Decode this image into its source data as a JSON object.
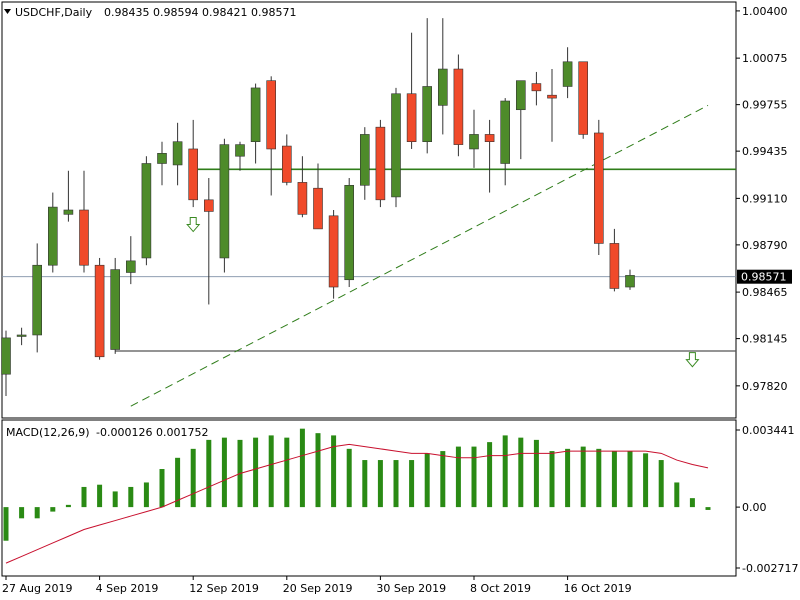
{
  "chart_data": [
    {
      "type": "candlestick",
      "header": {
        "symbol_label": "USDCHF,Daily",
        "ohlc_values": "0.98435 0.98594 0.98421 0.98571"
      },
      "current_price": 0.98571,
      "current_price_label": "0.98571",
      "ylim": [
        0.9764,
        1.0042
      ],
      "y_ticks": [
        "1.00400",
        "1.00075",
        "0.99755",
        "0.99435",
        "0.99110",
        "0.98790",
        "0.98465",
        "0.98145",
        "0.97820"
      ],
      "x_tick_labels": [
        "27 Aug 2019",
        "4 Sep 2019",
        "12 Sep 2019",
        "20 Sep 2019",
        "30 Sep 2019",
        "8 Oct 2019",
        "16 Oct 2019"
      ],
      "x_tick_candle_index": [
        0,
        6,
        12,
        18,
        24,
        30,
        36
      ],
      "colors": {
        "bull": "#4e8b2a",
        "bear": "#f04a2a",
        "wick": "#333333",
        "trend": "#2f7d1a"
      },
      "candles": [
        [
          0.979,
          0.982,
          0.9775,
          0.9815
        ],
        [
          0.9816,
          0.9822,
          0.981,
          0.9817
        ],
        [
          0.9817,
          0.988,
          0.9805,
          0.9865
        ],
        [
          0.9865,
          0.9915,
          0.986,
          0.9905
        ],
        [
          0.99,
          0.993,
          0.9895,
          0.9903
        ],
        [
          0.9903,
          0.993,
          0.986,
          0.9865
        ],
        [
          0.9865,
          0.987,
          0.98,
          0.9802
        ],
        [
          0.9807,
          0.987,
          0.9804,
          0.9862
        ],
        [
          0.986,
          0.9885,
          0.9852,
          0.9868
        ],
        [
          0.987,
          0.994,
          0.9865,
          0.9935
        ],
        [
          0.9935,
          0.995,
          0.992,
          0.9942
        ],
        [
          0.9934,
          0.9963,
          0.992,
          0.995
        ],
        [
          0.9945,
          0.9965,
          0.9905,
          0.991
        ],
        [
          0.991,
          0.9925,
          0.9838,
          0.9902
        ],
        [
          0.987,
          0.9952,
          0.986,
          0.9948
        ],
        [
          0.994,
          0.995,
          0.993,
          0.9948
        ],
        [
          0.995,
          0.999,
          0.9935,
          0.9987
        ],
        [
          0.9992,
          0.9995,
          0.9913,
          0.9945
        ],
        [
          0.9947,
          0.9955,
          0.992,
          0.9922
        ],
        [
          0.9922,
          0.994,
          0.9898,
          0.99
        ],
        [
          0.9918,
          0.9935,
          0.989,
          0.989
        ],
        [
          0.9899,
          0.9903,
          0.9842,
          0.985
        ],
        [
          0.9855,
          0.9925,
          0.985,
          0.992
        ],
        [
          0.992,
          0.996,
          0.991,
          0.9955
        ],
        [
          0.996,
          0.9965,
          0.9905,
          0.991
        ],
        [
          0.9912,
          0.9987,
          0.9905,
          0.9983
        ],
        [
          0.9983,
          1.0025,
          0.9945,
          0.995
        ],
        [
          0.995,
          1.0035,
          0.9942,
          0.9988
        ],
        [
          0.9975,
          1.0035,
          0.9955,
          1.0
        ],
        [
          1.0,
          1.001,
          0.994,
          0.9948
        ],
        [
          0.9945,
          0.9972,
          0.9932,
          0.9955
        ],
        [
          0.9955,
          0.9965,
          0.9915,
          0.995
        ],
        [
          0.9935,
          0.998,
          0.992,
          0.9978
        ],
        [
          0.9972,
          0.999,
          0.9938,
          0.9992
        ],
        [
          0.999,
          0.9998,
          0.9975,
          0.9985
        ],
        [
          0.9982,
          1.0,
          0.995,
          0.998
        ],
        [
          0.9988,
          1.0015,
          0.998,
          1.0005
        ],
        [
          1.0005,
          1.0005,
          0.9952,
          0.9955
        ],
        [
          0.9956,
          0.9965,
          0.9872,
          0.988
        ],
        [
          0.988,
          0.989,
          0.9847,
          0.9849
        ],
        [
          0.985,
          0.9862,
          0.9848,
          0.9858
        ]
      ],
      "horizontal_levels": [
        0.9931,
        0.9806
      ],
      "trendline": {
        "from": [
          8,
          0.9768
        ],
        "to": [
          45,
          0.9975
        ]
      },
      "down_arrows": [
        [
          12,
          0.9893
        ],
        [
          44,
          0.98
        ]
      ]
    },
    {
      "type": "bar+line",
      "header": {
        "indicator_label": "MACD(12,26,9)",
        "indicator_values": "-0.000126 0.001752"
      },
      "ylim": [
        -0.002717,
        0.003441
      ],
      "y_ticks": [
        "0.003441",
        "0.00",
        "-0.002717"
      ],
      "colors": {
        "histogram": "#2a8a14",
        "signal": "#c8102e"
      },
      "histogram": [
        -0.0015,
        -0.0005,
        -0.0005,
        -0.0002,
        0.0001,
        0.0009,
        0.001,
        0.0007,
        0.0009,
        0.0011,
        0.0017,
        0.0022,
        0.0026,
        0.003,
        0.0031,
        0.003,
        0.0031,
        0.0032,
        0.0031,
        0.0035,
        0.0033,
        0.0032,
        0.0026,
        0.0021,
        0.0021,
        0.0021,
        0.0021,
        0.0024,
        0.0025,
        0.0027,
        0.0027,
        0.0029,
        0.0032,
        0.0031,
        0.003,
        0.0025,
        0.0026,
        0.0027,
        0.0026,
        0.0025,
        0.0025,
        0.0024,
        0.0021,
        0.0011,
        0.0004,
        -0.000126
      ],
      "signal": [
        -0.0025,
        -0.0022,
        -0.0019,
        -0.0016,
        -0.0013,
        -0.001,
        -0.0008,
        -0.0006,
        -0.0004,
        -0.0002,
        0.0,
        0.0003,
        0.0006,
        0.0009,
        0.0012,
        0.0015,
        0.0017,
        0.0019,
        0.0021,
        0.0023,
        0.0025,
        0.0027,
        0.0028,
        0.0027,
        0.0026,
        0.0025,
        0.0024,
        0.0024,
        0.0023,
        0.0022,
        0.0022,
        0.0023,
        0.0023,
        0.0024,
        0.0024,
        0.0024,
        0.0025,
        0.0025,
        0.0025,
        0.0025,
        0.0025,
        0.0025,
        0.0024,
        0.0021,
        0.0019,
        0.001752
      ]
    }
  ]
}
